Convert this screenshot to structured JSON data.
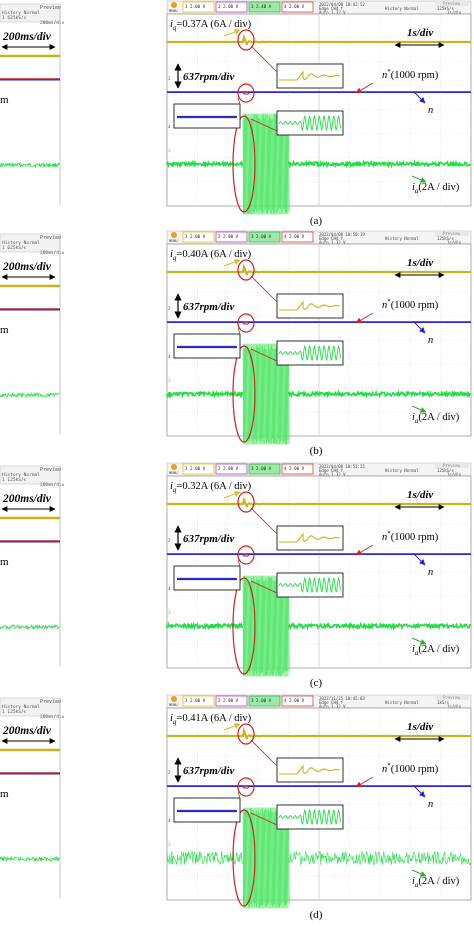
{
  "colors": {
    "iq_trace": "#c8b41e",
    "nref_trace": "#cc2222",
    "n_trace": "#2a2ad0",
    "ia_trace": "#22dd44",
    "ia_dense": "#8ff09a",
    "grid": "#c8c8c8",
    "arrow_iq": "#d4c020",
    "arrow_nref": "#cc2222",
    "arrow_n": "#2222cc",
    "arrow_ia": "#33aa33",
    "ellipse": "#cc2222"
  },
  "left_partial": {
    "time_div": "200ms/div",
    "speed_fragment": "m",
    "panels": [
      {
        "header_top": "Preview",
        "header_row2": "History  Normal",
        "header_row3": "1    625kS/s",
        "header_row4": "200ms/div"
      },
      {
        "header_top": "Preview",
        "header_row2": "History  Normal",
        "header_row3": "1    625kS/s",
        "header_row4": "200ms/div"
      },
      {
        "header_top": "Preview",
        "header_row2": "History  Normal",
        "header_row3": "1    125kS/s",
        "header_row4": "200ms/div"
      },
      {
        "header_top": "Preview",
        "header_row2": "History  Normal",
        "header_row3": "1    125kS/s",
        "header_row4": "200ms/div"
      }
    ]
  },
  "chart_data": [
    {
      "type": "line",
      "panel_label": "(a)",
      "iq_label": "=0.37A (6A / div)",
      "speed_scale": "637rpm/div",
      "time_scale": "1s/div",
      "nref_label": "(1000 rpm)",
      "n_label": "n",
      "ia_label": "(2A / div)",
      "scope_date": "2022/04/08  10:42:52",
      "scope_trigger": "Edge  CH4  f",
      "scope_auto": "Auto  3.32 V",
      "scope_history": "History  Normal",
      "scope_rate": "125kS/s",
      "scope_timebase": "1s/div",
      "scope_preview": "Preview",
      "scope_channels": [
        "1  2.00 V",
        "2  2.00 V",
        "3  2.40 A",
        "4  2.00 V"
      ],
      "series": [
        {
          "name": "i_q",
          "step_time_s": 2.5,
          "before": 0.0,
          "after": 0.37
        },
        {
          "name": "n*",
          "value_rpm": 1000
        },
        {
          "name": "n",
          "value_rpm": 1000
        },
        {
          "name": "i_a",
          "burst_start_s": 2.5,
          "burst_end_s": 4.0,
          "amplitude_div": 1.5
        }
      ]
    },
    {
      "type": "line",
      "panel_label": "(b)",
      "iq_label": "=0.40A (6A / div)",
      "speed_scale": "637rpm/div",
      "time_scale": "1s/div",
      "nref_label": "(1000 rpm)",
      "n_label": "n",
      "ia_label": "(2A / div)",
      "scope_date": "2022/04/08  10:50:19",
      "scope_trigger": "Edge  CH4  f",
      "scope_auto": "Auto  3.32 V",
      "scope_history": "History  Normal",
      "scope_rate": "125kS/s",
      "scope_timebase": "1s/div",
      "scope_preview": "Preview",
      "scope_channels": [
        "1  2.00 V",
        "2  2.00 V",
        "3  2.00 A",
        "4  2.00 V"
      ],
      "series": [
        {
          "name": "i_q",
          "step_time_s": 2.5,
          "before": 0.0,
          "after": 0.4
        },
        {
          "name": "n*",
          "value_rpm": 1000
        },
        {
          "name": "n",
          "value_rpm": 1000
        },
        {
          "name": "i_a",
          "burst_start_s": 2.5,
          "burst_end_s": 4.0,
          "amplitude_div": 1.5
        }
      ]
    },
    {
      "type": "line",
      "panel_label": "(c)",
      "iq_label": "=0.32A (6A / div)",
      "speed_scale": "637rpm/div",
      "time_scale": "1s/div",
      "nref_label": "(1000 rpm)",
      "n_label": "n",
      "ia_label": "(2A / div)",
      "scope_date": "2022/04/08  10:51:25",
      "scope_trigger": "Edge  CH4  f",
      "scope_auto": "Auto  3.32 V",
      "scope_history": "History  Normal",
      "scope_rate": "125kS/s",
      "scope_timebase": "1s/div",
      "scope_preview": "Preview",
      "scope_channels": [
        "1  2.00 V",
        "2  2.00 V",
        "3  2.00 A",
        "4  2.00 V"
      ],
      "series": [
        {
          "name": "i_q",
          "step_time_s": 2.5,
          "before": 0.0,
          "after": 0.32
        },
        {
          "name": "n*",
          "value_rpm": 1000
        },
        {
          "name": "n",
          "value_rpm": 1000
        },
        {
          "name": "i_a",
          "burst_start_s": 2.5,
          "burst_end_s": 4.0,
          "amplitude_div": 1.5
        }
      ]
    },
    {
      "type": "line",
      "panel_label": "(d)",
      "iq_label": "=0.41A (6A / div)",
      "speed_scale": "637rpm/div",
      "time_scale": "1s/div",
      "nref_label": "(1000 rpm)",
      "n_label": "n",
      "ia_label": "(2A / div)",
      "scope_date": "2022/11/25  10:45:03",
      "scope_trigger": "Edge  CH4  f",
      "scope_auto": "Auto  3.32 V",
      "scope_history": "History  Normal",
      "scope_rate": "1kS/s",
      "scope_timebase": "1s/div",
      "scope_preview": "Preview",
      "scope_channels": [
        "1  2.00 V",
        "2  2.00 V",
        "3  2.00 A",
        "4  2.00 V"
      ],
      "series": [
        {
          "name": "i_q",
          "step_time_s": 2.5,
          "before": 0.0,
          "after": 0.41
        },
        {
          "name": "n*",
          "value_rpm": 1000
        },
        {
          "name": "n",
          "value_rpm": 1000
        },
        {
          "name": "i_a",
          "burst_start_s": 2.5,
          "burst_end_s": 4.0,
          "amplitude_div": 1.5
        }
      ]
    }
  ]
}
